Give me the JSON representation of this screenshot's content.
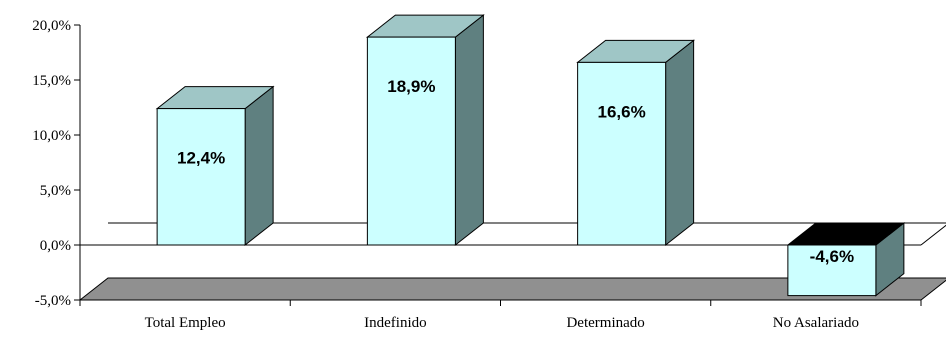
{
  "chart_data": {
    "type": "bar",
    "style": "3d",
    "categories": [
      "Total Empleo",
      "Indefinido",
      "Determinado",
      "No Asalariado"
    ],
    "values": [
      12.4,
      18.9,
      16.6,
      -4.6
    ],
    "data_labels": [
      "12,4%",
      "18,9%",
      "16,6%",
      "-4,6%"
    ],
    "y_ticks": [
      -5,
      0,
      5,
      10,
      15,
      20
    ],
    "y_tick_labels": [
      "-5,0%",
      "0,0%",
      "5,0%",
      "10,0%",
      "15,0%",
      "20,0%"
    ],
    "ylim": [
      -5,
      20
    ],
    "title": "",
    "xlabel": "",
    "ylabel": "",
    "grid": false,
    "legend": "none",
    "colors": {
      "bar_front": "#ccffff",
      "bar_side": "#5f8080",
      "bar_top": "#9fc6c6",
      "negative_top": "#000000",
      "floor": "#909090",
      "line": "#000000"
    }
  }
}
